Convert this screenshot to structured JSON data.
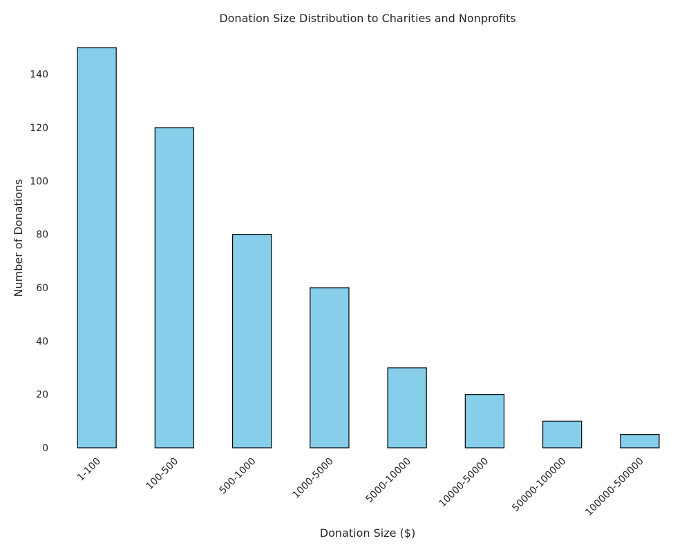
{
  "chart_data": {
    "type": "bar",
    "title": "Donation Size Distribution to Charities and Nonprofits",
    "xlabel": "Donation Size ($)",
    "ylabel": "Number of Donations",
    "categories": [
      "1-100",
      "100-500",
      "500-1000",
      "1000-5000",
      "5000-10000",
      "10000-50000",
      "50000-100000",
      "100000-500000"
    ],
    "values": [
      150,
      120,
      80,
      60,
      30,
      20,
      10,
      5
    ],
    "yticks": [
      0,
      20,
      40,
      60,
      80,
      100,
      120,
      140
    ],
    "ylim": [
      0,
      157.5
    ],
    "grid": false,
    "bar_color": "#87CEEB",
    "edge_color": "#000000"
  }
}
